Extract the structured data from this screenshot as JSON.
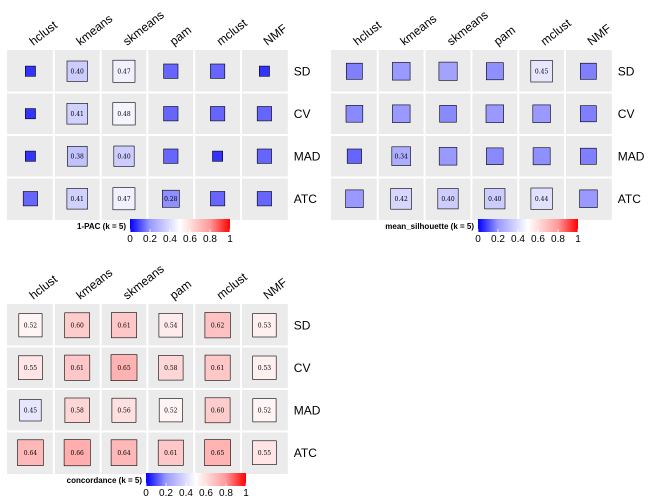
{
  "colors": {
    "panel_bg": "#ebebeb",
    "low": "#0000ff",
    "mid": "#ffffff",
    "high": "#ff0000",
    "square_border": "#000000",
    "grid_line": "#ffffff"
  },
  "chart_data": [
    {
      "type": "heatmap",
      "title": "",
      "columns": [
        "hclust",
        "kmeans",
        "skmeans",
        "pam",
        "mclust",
        "NMF"
      ],
      "rows": [
        "SD",
        "CV",
        "MAD",
        "ATC"
      ],
      "values": [
        [
          0.1,
          0.4,
          0.47,
          0.2,
          0.2,
          0.1
        ],
        [
          0.1,
          0.41,
          0.48,
          0.2,
          0.2,
          0.2
        ],
        [
          0.1,
          0.38,
          0.4,
          0.2,
          0.1,
          0.2
        ],
        [
          0.2,
          0.41,
          0.47,
          0.28,
          0.2,
          0.2
        ]
      ],
      "labels": [
        [
          "",
          "0.40",
          "0.47",
          "",
          "",
          ""
        ],
        [
          "",
          "0.41",
          "0.48",
          "",
          "",
          ""
        ],
        [
          "",
          "0.38",
          "0.40",
          "",
          "",
          ""
        ],
        [
          "",
          "0.41",
          "0.47",
          "0.28",
          "",
          ""
        ]
      ],
      "legend": {
        "title": "1-PAC (k = 5)",
        "ticks": [
          "0",
          "0.2",
          "0.4",
          "0.6",
          "0.8",
          "1"
        ],
        "range": [
          0,
          1
        ]
      }
    },
    {
      "type": "heatmap",
      "title": "",
      "columns": [
        "hclust",
        "kmeans",
        "skmeans",
        "pam",
        "mclust",
        "NMF"
      ],
      "rows": [
        "SD",
        "CV",
        "MAD",
        "ATC"
      ],
      "values": [
        [
          0.25,
          0.3,
          0.32,
          0.28,
          0.45,
          0.25
        ],
        [
          0.27,
          0.3,
          0.27,
          0.3,
          0.3,
          0.25
        ],
        [
          0.2,
          0.34,
          0.3,
          0.27,
          0.28,
          0.25
        ],
        [
          0.3,
          0.42,
          0.4,
          0.4,
          0.44,
          0.3
        ]
      ],
      "labels": [
        [
          "",
          "",
          "",
          "",
          "0.45",
          ""
        ],
        [
          "",
          "",
          "",
          "",
          "",
          ""
        ],
        [
          "",
          "0.34",
          "",
          "",
          "",
          ""
        ],
        [
          "",
          "0.42",
          "0.40",
          "0.40",
          "0.44",
          ""
        ]
      ],
      "legend": {
        "title": "mean_silhouette (k = 5)",
        "ticks": [
          "0",
          "0.2",
          "0.4",
          "0.6",
          "0.8",
          "1"
        ],
        "range": [
          0,
          1
        ]
      }
    },
    {
      "type": "heatmap",
      "title": "",
      "columns": [
        "hclust",
        "kmeans",
        "skmeans",
        "pam",
        "mclust",
        "NMF"
      ],
      "rows": [
        "SD",
        "CV",
        "MAD",
        "ATC"
      ],
      "values": [
        [
          0.52,
          0.6,
          0.61,
          0.54,
          0.62,
          0.53
        ],
        [
          0.55,
          0.61,
          0.65,
          0.58,
          0.61,
          0.53
        ],
        [
          0.45,
          0.58,
          0.56,
          0.52,
          0.6,
          0.52
        ],
        [
          0.64,
          0.66,
          0.64,
          0.61,
          0.65,
          0.55
        ]
      ],
      "labels": [
        [
          "0.52",
          "0.60",
          "0.61",
          "0.54",
          "0.62",
          "0.53"
        ],
        [
          "0.55",
          "0.61",
          "0.65",
          "0.58",
          "0.61",
          "0.53"
        ],
        [
          "0.45",
          "0.58",
          "0.56",
          "0.52",
          "0.60",
          "0.52"
        ],
        [
          "0.64",
          "0.66",
          "0.64",
          "0.61",
          "0.65",
          "0.55"
        ]
      ],
      "legend": {
        "title": "concordance (k = 5)",
        "ticks": [
          "0",
          "0.2",
          "0.4",
          "0.6",
          "0.8",
          "1"
        ],
        "range": [
          0,
          1
        ]
      }
    }
  ]
}
